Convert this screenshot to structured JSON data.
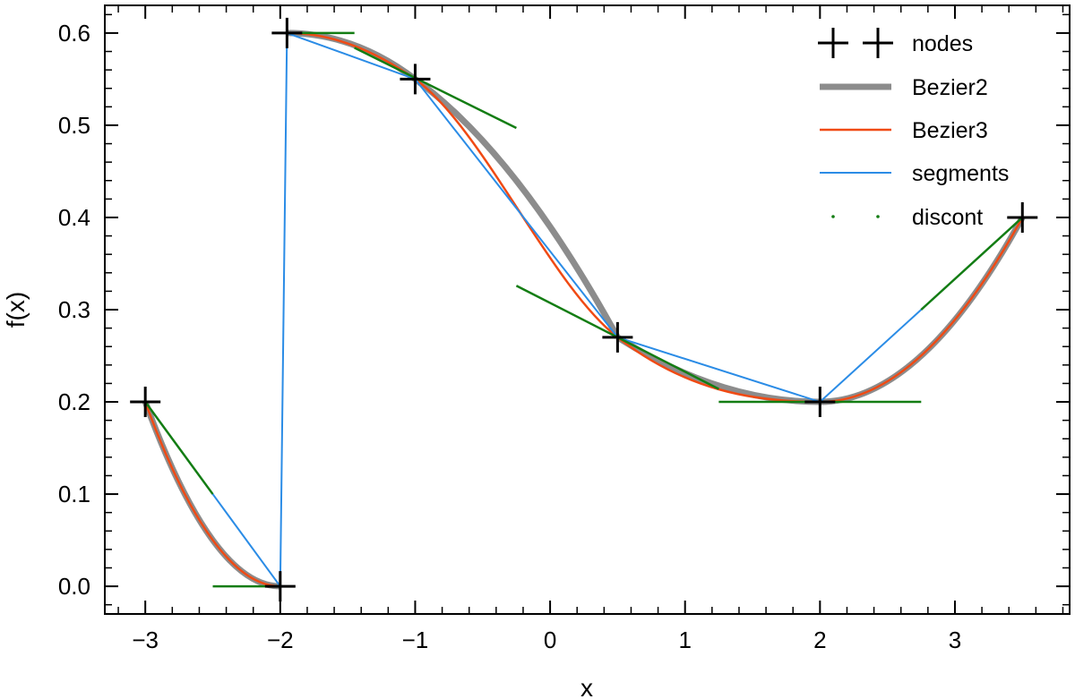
{
  "chart_data": {
    "type": "line",
    "xlabel": "x",
    "ylabel": "f(x)",
    "xlim": [
      -3.3,
      3.85
    ],
    "ylim": [
      -0.03,
      0.63
    ],
    "xticks": [
      -3,
      -2,
      -1,
      0,
      1,
      2,
      3
    ],
    "yticks": [
      0.0,
      0.1,
      0.2,
      0.3,
      0.4,
      0.5,
      0.6
    ],
    "xtick_labels": [
      "−3",
      "−2",
      "−1",
      "0",
      "1",
      "2",
      "3"
    ],
    "ytick_labels": [
      "0.0",
      "0.1",
      "0.2",
      "0.3",
      "0.4",
      "0.5",
      "0.6"
    ],
    "grid": false,
    "legend_position": "top-right",
    "nodes": {
      "name": "nodes",
      "color": "#000000",
      "x": [
        -3,
        -2,
        -1.95,
        -1,
        0.5,
        2,
        3.5
      ],
      "y": [
        0.2,
        0.0,
        0.6,
        0.55,
        0.27,
        0.2,
        0.4
      ]
    },
    "series": [
      {
        "name": "Bezier2",
        "color": "#8c8c8c",
        "pieces": [
          [
            [
              -3,
              0.2
            ],
            [
              -2.5,
              0.0
            ],
            [
              -2,
              0.0
            ]
          ],
          [
            [
              -1.95,
              0.6
            ],
            [
              -1.45,
              0.6
            ],
            [
              -1,
              0.55
            ]
          ],
          [
            [
              -1,
              0.55
            ],
            [
              -0.25,
              0.47
            ],
            [
              0.5,
              0.27
            ]
          ],
          [
            [
              0.5,
              0.27
            ],
            [
              1.25,
              0.2
            ],
            [
              2,
              0.2
            ]
          ],
          [
            [
              2,
              0.2
            ],
            [
              2.75,
              0.2
            ],
            [
              3.5,
              0.4
            ]
          ]
        ]
      },
      {
        "name": "Bezier3",
        "color": "#f04a14",
        "pieces": [
          [
            [
              -3,
              0.2
            ],
            [
              -2.67,
              0.067
            ],
            [
              -2.33,
              0.0
            ],
            [
              -2,
              0.0
            ]
          ],
          [
            [
              -1.95,
              0.6
            ],
            [
              -1.63,
              0.6
            ],
            [
              -1.32,
              0.583
            ],
            [
              -1,
              0.55
            ]
          ],
          [
            [
              -1,
              0.55
            ],
            [
              -0.5,
              0.497
            ],
            [
              0.0,
              0.327
            ],
            [
              0.5,
              0.27
            ]
          ],
          [
            [
              0.5,
              0.27
            ],
            [
              1.0,
              0.213
            ],
            [
              1.5,
              0.2
            ],
            [
              2,
              0.2
            ]
          ],
          [
            [
              2,
              0.2
            ],
            [
              2.5,
              0.2
            ],
            [
              3.0,
              0.267
            ],
            [
              3.5,
              0.4
            ]
          ]
        ]
      },
      {
        "name": "segments",
        "color": "#2b8ce6",
        "points": [
          [
            -3,
            0.2
          ],
          [
            -2.5,
            0.1
          ],
          [
            -2,
            0.0
          ],
          [
            -1.95,
            0.6
          ],
          [
            -1,
            0.55
          ],
          [
            -0.25,
            0.41
          ],
          [
            0.5,
            0.27
          ],
          [
            2,
            0.2
          ],
          [
            2.75,
            0.3
          ],
          [
            3.5,
            0.4
          ]
        ]
      },
      {
        "name": "discont",
        "color": "#137d13",
        "segments": [
          [
            [
              -3,
              0.2
            ],
            [
              -2.5,
              0.1
            ]
          ],
          [
            [
              -2.5,
              0.0
            ],
            [
              -2,
              0.0
            ]
          ],
          [
            [
              -1.95,
              0.6
            ],
            [
              -1.45,
              0.6
            ]
          ],
          [
            [
              -1.45,
              0.584
            ],
            [
              -0.25,
              0.497
            ]
          ],
          [
            [
              -0.25,
              0.326
            ],
            [
              1.25,
              0.214
            ]
          ],
          [
            [
              1.25,
              0.2
            ],
            [
              2.75,
              0.2
            ]
          ],
          [
            [
              2.75,
              0.3
            ],
            [
              3.5,
              0.4
            ]
          ]
        ]
      }
    ]
  }
}
